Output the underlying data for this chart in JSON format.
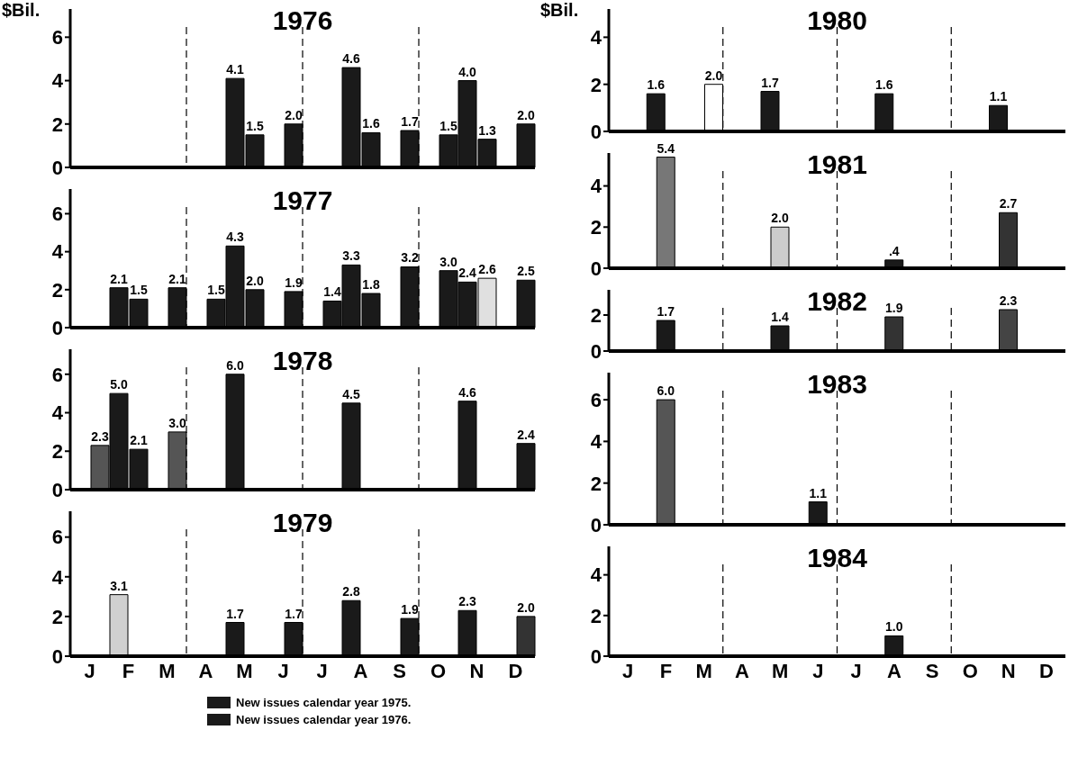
{
  "chart_data": [
    {
      "type": "bar",
      "title": "1976",
      "ylabel": "$Bil.",
      "categories": [
        null,
        null,
        null,
        null,
        null,
        null,
        null,
        null,
        null,
        null,
        null,
        null
      ],
      "series": [
        {
          "values": [
            null,
            null,
            null,
            null,
            4.1,
            null,
            null,
            4.6,
            null,
            null,
            4.0,
            null
          ],
          "value_labels": [
            null,
            null,
            null,
            null,
            "4.1",
            null,
            null,
            "4.6",
            null,
            null,
            "4.0",
            null
          ],
          "colors": [
            null,
            null,
            null,
            null,
            "#1a1a1a",
            null,
            null,
            "#1a1a1a",
            null,
            null,
            "#1a1a1a",
            null
          ]
        },
        {
          "values": [
            null,
            null,
            null,
            null,
            1.5,
            2.0,
            null,
            1.6,
            1.7,
            1.5,
            1.3,
            2.0
          ],
          "value_labels": [
            null,
            null,
            null,
            null,
            "1.5",
            "2.0",
            null,
            "1.6",
            "1.7",
            "1.5",
            "1.3",
            "2.0"
          ],
          "colors": [
            null,
            null,
            null,
            null,
            "#1a1a1a",
            "#1a1a1a",
            null,
            "#1a1a1a",
            "#1a1a1a",
            "#1a1a1a",
            "#1a1a1a",
            "#1a1a1a"
          ]
        }
      ],
      "ylim": [
        0,
        7.3
      ],
      "yticks": [
        0,
        2,
        4,
        6
      ],
      "tick_labels": "y"
    },
    {
      "type": "bar",
      "title": "1977",
      "categories": [
        null,
        null,
        null,
        null,
        null,
        null,
        null,
        null,
        null,
        null,
        null,
        null
      ],
      "series": [
        {
          "values": [
            null,
            2.1,
            null,
            null,
            4.3,
            null,
            null,
            3.3,
            null,
            null,
            2.4,
            null
          ],
          "value_labels": [
            null,
            "2.1",
            null,
            null,
            "4.3",
            null,
            null,
            "3.3",
            null,
            null,
            "2.4",
            null
          ],
          "colors": [
            null,
            "#1a1a1a",
            null,
            null,
            "#1a1a1a",
            null,
            null,
            "#1a1a1a",
            null,
            null,
            "#1a1a1a",
            null
          ]
        },
        {
          "values": [
            null,
            1.5,
            2.1,
            1.5,
            2.0,
            1.9,
            1.4,
            1.8,
            3.2,
            3.0,
            2.6,
            2.5
          ],
          "value_labels": [
            null,
            "1.5",
            "2.1",
            "1.5",
            "2.0",
            "1.9",
            "1.4",
            "1.8",
            "3.2",
            "3.0",
            "2.6",
            "2.5"
          ],
          "colors": [
            null,
            "#1a1a1a",
            "#1a1a1a",
            "#1a1a1a",
            "#1a1a1a",
            "#1a1a1a",
            "#1a1a1a",
            "#1a1a1a",
            "#1a1a1a",
            "#1a1a1a",
            "#e0e0e0",
            "#1a1a1a"
          ]
        }
      ],
      "ylim": [
        0,
        7.3
      ],
      "yticks": [
        0,
        2,
        4,
        6
      ],
      "tick_labels": "y"
    },
    {
      "type": "bar",
      "title": "1978",
      "categories": [
        null,
        null,
        null,
        null,
        null,
        null,
        null,
        null,
        null,
        null,
        null,
        null
      ],
      "series": [
        {
          "values": [
            null,
            5.0,
            null,
            null,
            6.0,
            null,
            null,
            4.5,
            null,
            null,
            4.6,
            null
          ],
          "value_labels": [
            null,
            "5.0",
            null,
            null,
            "6.0",
            null,
            null,
            "4.5",
            null,
            null,
            "4.6",
            null
          ],
          "colors": [
            null,
            "#1a1a1a",
            null,
            null,
            "#1a1a1a",
            null,
            null,
            "#1a1a1a",
            null,
            null,
            "#1a1a1a",
            null
          ]
        },
        {
          "values": [
            2.3,
            2.1,
            3.0,
            null,
            null,
            null,
            null,
            null,
            null,
            null,
            null,
            2.4
          ],
          "value_labels": [
            "2.3",
            "2.1",
            "3.0",
            null,
            null,
            null,
            null,
            null,
            null,
            null,
            null,
            "2.4"
          ],
          "colors": [
            "#555555",
            "#1a1a1a",
            "#555555",
            null,
            null,
            null,
            null,
            null,
            null,
            null,
            null,
            "#1a1a1a"
          ]
        }
      ],
      "ylim": [
        0,
        7.3
      ],
      "yticks": [
        0,
        2,
        4,
        6
      ],
      "tick_labels": "y"
    },
    {
      "type": "bar",
      "title": "1979",
      "categories": [
        "J",
        "F",
        "M",
        "A",
        "M",
        "J",
        "J",
        "A",
        "S",
        "O",
        "N",
        "D"
      ],
      "series": [
        {
          "values": [
            null,
            3.1,
            null,
            null,
            1.7,
            null,
            null,
            2.8,
            null,
            null,
            2.3,
            null
          ],
          "value_labels": [
            null,
            "3.1",
            null,
            null,
            "1.7",
            null,
            null,
            "2.8",
            null,
            null,
            "2.3",
            null
          ],
          "colors": [
            null,
            "#d0d0d0",
            null,
            null,
            "#1a1a1a",
            null,
            null,
            "#1a1a1a",
            null,
            null,
            "#1a1a1a",
            null
          ]
        },
        {
          "values": [
            null,
            null,
            null,
            null,
            null,
            1.7,
            null,
            null,
            1.9,
            null,
            null,
            2.0
          ],
          "value_labels": [
            null,
            null,
            null,
            null,
            null,
            "1.7",
            null,
            null,
            "1.9",
            null,
            null,
            "2.0"
          ],
          "colors": [
            null,
            null,
            null,
            null,
            null,
            "#1a1a1a",
            null,
            null,
            "#1a1a1a",
            null,
            null,
            "#333333"
          ]
        }
      ],
      "ylim": [
        0,
        7.3
      ],
      "yticks": [
        0,
        2,
        4,
        6
      ],
      "annotations": [
        "New issues calendar year 1975.",
        "New issues calendar year 1976."
      ]
    },
    {
      "type": "bar",
      "title": "1980",
      "ylabel": "$Bil.",
      "categories": [
        null,
        null,
        null,
        null,
        null,
        null,
        null,
        null,
        null,
        null,
        null,
        null
      ],
      "series": [
        {
          "values": [
            null,
            1.6,
            null,
            null,
            1.7,
            null,
            null,
            1.6,
            null,
            null,
            1.1,
            null
          ],
          "value_labels": [
            null,
            "1.6",
            null,
            null,
            "1.7",
            null,
            null,
            "1.6",
            null,
            null,
            "1.1",
            null
          ],
          "colors": [
            null,
            "#1a1a1a",
            null,
            null,
            "#1a1a1a",
            null,
            null,
            "#1a1a1a",
            null,
            null,
            "#1a1a1a",
            null
          ]
        },
        {
          "values": [
            null,
            null,
            2.0,
            null,
            null,
            null,
            null,
            null,
            null,
            null,
            null,
            null
          ],
          "value_labels": [
            null,
            null,
            "2.0",
            null,
            null,
            null,
            null,
            null,
            null,
            null,
            null,
            null
          ],
          "colors": [
            null,
            null,
            "#ffffff",
            null,
            null,
            null,
            null,
            null,
            null,
            null,
            null,
            null
          ]
        }
      ],
      "ylim": [
        0,
        5.2
      ],
      "yticks": [
        0,
        2,
        4
      ],
      "tick_labels": "y"
    },
    {
      "type": "bar",
      "title": "1981",
      "categories": [
        null,
        null,
        null,
        null,
        null,
        null,
        null,
        null,
        null,
        null,
        null,
        null
      ],
      "values": [
        null,
        5.4,
        null,
        null,
        2.0,
        null,
        null,
        0.4,
        null,
        null,
        2.7,
        null
      ],
      "value_labels": [
        null,
        "5.4",
        null,
        null,
        "2.0",
        null,
        null,
        ".4",
        null,
        null,
        "2.7",
        null
      ],
      "colors": [
        null,
        "#777777",
        null,
        null,
        "#cccccc",
        null,
        null,
        "#1a1a1a",
        null,
        null,
        "#333333",
        null
      ],
      "ylim": [
        0,
        5.6
      ],
      "yticks": [
        0,
        2,
        4
      ],
      "tick_labels": "y"
    },
    {
      "type": "bar",
      "title": "1982",
      "categories": [
        null,
        null,
        null,
        null,
        null,
        null,
        null,
        null,
        null,
        null,
        null,
        null
      ],
      "values": [
        null,
        1.7,
        null,
        null,
        1.4,
        null,
        null,
        1.9,
        null,
        null,
        2.3,
        null
      ],
      "value_labels": [
        null,
        "1.7",
        null,
        null,
        "1.4",
        null,
        null,
        "1.9",
        null,
        null,
        "2.3",
        null
      ],
      "colors": [
        null,
        "#1a1a1a",
        null,
        null,
        "#1a1a1a",
        null,
        null,
        "#333333",
        null,
        null,
        "#444444",
        null
      ],
      "ylim": [
        0,
        3.4
      ],
      "yticks": [
        0,
        2
      ],
      "tick_labels": "y"
    },
    {
      "type": "bar",
      "title": "1983",
      "categories": [
        null,
        null,
        null,
        null,
        null,
        null,
        null,
        null,
        null,
        null,
        null,
        null
      ],
      "values": [
        null,
        6.0,
        null,
        null,
        null,
        1.1,
        null,
        null,
        null,
        null,
        null,
        null
      ],
      "value_labels": [
        null,
        "6.0",
        null,
        null,
        null,
        "1.1",
        null,
        null,
        null,
        null,
        null,
        null
      ],
      "colors": [
        null,
        "#555555",
        null,
        null,
        null,
        "#1a1a1a",
        null,
        null,
        null,
        null,
        null,
        null
      ],
      "ylim": [
        0,
        7.3
      ],
      "yticks": [
        0,
        2,
        4,
        6
      ],
      "tick_labels": "y"
    },
    {
      "type": "bar",
      "title": "1984",
      "categories": [
        "J",
        "F",
        "M",
        "A",
        "M",
        "J",
        "J",
        "A",
        "S",
        "O",
        "N",
        "D"
      ],
      "values": [
        null,
        null,
        null,
        null,
        null,
        null,
        null,
        1.0,
        null,
        null,
        null,
        null
      ],
      "value_labels": [
        null,
        null,
        null,
        null,
        null,
        null,
        null,
        "1.0",
        null,
        null,
        null,
        null
      ],
      "colors": [
        null,
        null,
        null,
        null,
        null,
        null,
        null,
        "#1a1a1a",
        null,
        null,
        null,
        null
      ],
      "ylim": [
        0,
        5.4
      ],
      "yticks": [
        0,
        2,
        4
      ]
    }
  ]
}
